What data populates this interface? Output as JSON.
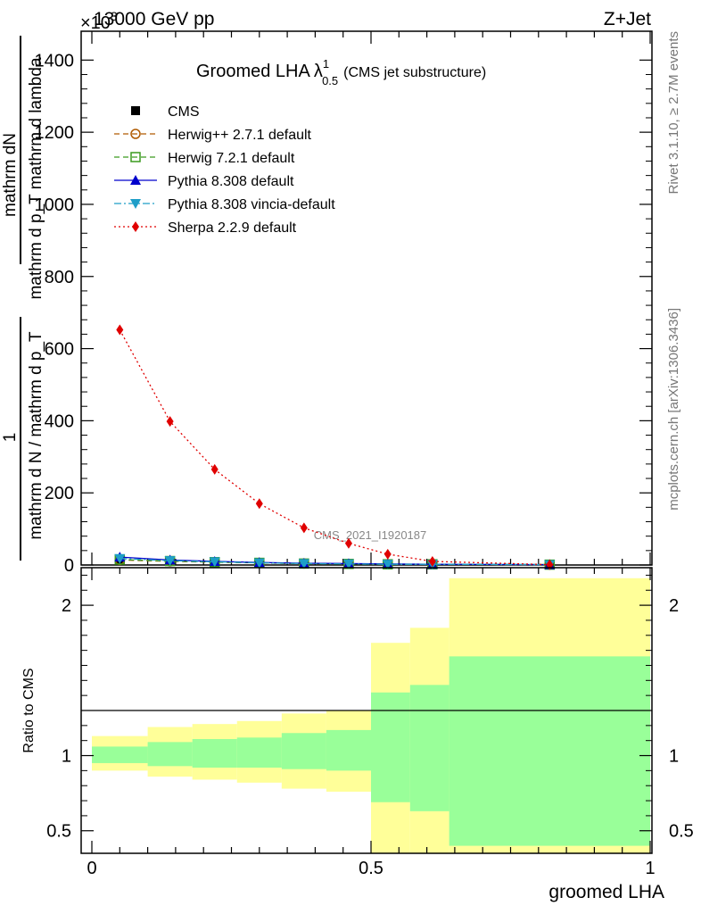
{
  "header": {
    "left": "13000 GeV pp",
    "right": "Z+Jet",
    "exponent": "×10",
    "exponent_sup": "3"
  },
  "side_labels": {
    "rivet": "Rivet 3.1.10, ≥ 2.7M events",
    "mcplots": "mcplots.cern.ch [arXiv:1306.3436]"
  },
  "watermark": "CMS_2021_I1920187",
  "chart_data": [
    {
      "type": "line",
      "title": "Groomed LHA",
      "title_symbol": "λ",
      "title_sup": "1",
      "title_sub": "0.5",
      "title_note": "(CMS jet substructure)",
      "ylabel_numerator": "mathrm dN",
      "ylabel_numerator_2": "mathrm d p_T mathrm d lambda",
      "ylabel_prefix": "1",
      "ylabel_denominator": "mathrm d N / mathrm d p_T",
      "xlim": [
        0,
        1
      ],
      "ylim": [
        0,
        1480
      ],
      "y_scale_note": "values in units of 10^3",
      "y_ticks": [
        "0",
        "200",
        "400",
        "600",
        "800",
        "1000",
        "1200",
        "1400"
      ],
      "legend_position": "top-left",
      "series": [
        {
          "name": "CMS",
          "color": "#000000",
          "marker": "square-filled",
          "x": [
            0.05,
            0.14,
            0.22,
            0.3,
            0.38,
            0.46,
            0.53,
            0.61,
            0.82
          ],
          "values": [
            16,
            12,
            9,
            7,
            5,
            4,
            3,
            2,
            1
          ]
        },
        {
          "name": "Herwig++ 2.7.1 default",
          "color": "#b05a00",
          "marker": "circle-open",
          "dash": "dashed",
          "x": [
            0.05,
            0.14,
            0.22,
            0.3,
            0.38,
            0.46,
            0.53,
            0.61,
            0.82
          ],
          "values": [
            14,
            10,
            8,
            6,
            4,
            3,
            2,
            2,
            1
          ]
        },
        {
          "name": "Herwig 7.2.1 default",
          "color": "#3a9a1e",
          "marker": "square-open",
          "dash": "dashed",
          "x": [
            0.05,
            0.14,
            0.22,
            0.3,
            0.38,
            0.46,
            0.53,
            0.61,
            0.82
          ],
          "values": [
            15,
            11,
            8,
            6,
            4,
            3,
            2,
            2,
            1
          ]
        },
        {
          "name": "Pythia 8.308 default",
          "color": "#0000cc",
          "marker": "triangle-up",
          "dash": "solid",
          "x": [
            0.05,
            0.14,
            0.22,
            0.3,
            0.38,
            0.46,
            0.53,
            0.61,
            0.82
          ],
          "values": [
            22,
            14,
            10,
            7,
            5,
            4,
            3,
            2,
            1
          ]
        },
        {
          "name": "Pythia 8.308 vincia-default",
          "color": "#1e9ec8",
          "marker": "triangle-down",
          "dash": "dashdot",
          "x": [
            0.05,
            0.14,
            0.22,
            0.3,
            0.38,
            0.46,
            0.53,
            0.61,
            0.82
          ],
          "values": [
            18,
            12,
            9,
            6,
            4,
            3,
            2,
            2,
            1
          ]
        },
        {
          "name": "Sherpa 2.2.9 default",
          "color": "#e00000",
          "marker": "diamond",
          "dash": "dotted",
          "x": [
            0.05,
            0.14,
            0.22,
            0.3,
            0.38,
            0.46,
            0.53,
            0.61,
            0.82
          ],
          "values": [
            652,
            398,
            265,
            170,
            103,
            60,
            30,
            10,
            1
          ]
        }
      ]
    },
    {
      "type": "area",
      "ylabel": "Ratio to CMS",
      "xlabel": "groomed LHA",
      "xlim": [
        0,
        1
      ],
      "ylim": [
        0.35,
        2.25
      ],
      "x_ticks": [
        "0",
        "0.5",
        "1"
      ],
      "y_ticks": [
        "0.5",
        "1",
        "2"
      ],
      "reference_line": 1,
      "bins": [
        0,
        0.1,
        0.18,
        0.26,
        0.34,
        0.42,
        0.5,
        0.57,
        0.64,
        1.0
      ],
      "band_stat": {
        "color": "#99ff99",
        "low": [
          0.95,
          0.93,
          0.92,
          0.92,
          0.91,
          0.9,
          0.69,
          0.63,
          0.4
        ],
        "high": [
          1.06,
          1.09,
          1.11,
          1.12,
          1.15,
          1.17,
          1.42,
          1.47,
          1.66
        ]
      },
      "band_total": {
        "color": "#ffff99",
        "low": [
          0.9,
          0.86,
          0.84,
          0.82,
          0.78,
          0.76,
          0.35,
          0.35,
          0.35
        ],
        "high": [
          1.13,
          1.19,
          1.21,
          1.23,
          1.28,
          1.3,
          1.75,
          1.85,
          2.18
        ]
      }
    }
  ]
}
